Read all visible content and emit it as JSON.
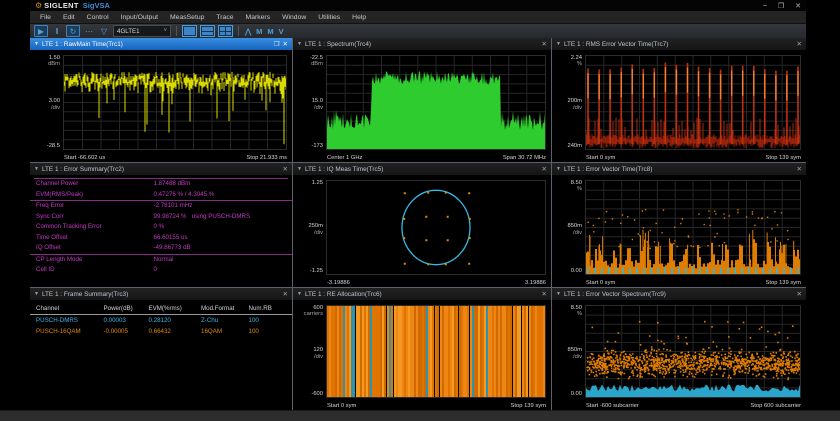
{
  "window": {
    "brand": "SIGLENT",
    "app": "SigVSA",
    "minimize": "–",
    "maximize": "❐",
    "close": "✕"
  },
  "menu": {
    "items": [
      "File",
      "Edit",
      "Control",
      "Input/Output",
      "MeasSetup",
      "Trace",
      "Markers",
      "Window",
      "Utilities",
      "Help"
    ]
  },
  "toolbar": {
    "play": "▶",
    "pause": "‖",
    "restart": "↻",
    "more": "⋯",
    "filter": "▽",
    "measurement": "4GLTE1",
    "chevron": "˅",
    "markers": [
      "⋀",
      "M",
      "M",
      "V"
    ]
  },
  "panel_chrome": {
    "dropdown": "▼",
    "maximize": "❐",
    "close": "✕"
  },
  "colors": {
    "accent_blue": "#1a73cf",
    "trace_yellow": "#e6e600",
    "trace_green": "#2ecc2e",
    "trace_red": "#c03010",
    "trace_orange": "#e07c00",
    "trace_cyan": "#35b8e8",
    "summary_magenta": "#c23ac2"
  },
  "panels": {
    "rawmain": {
      "title": "LTE 1 : RawMain Time(Trc1)",
      "y_top": "1.50",
      "y_top_unit": "dBm",
      "y_div": "3.00",
      "y_div_unit": "/div",
      "y_bottom": "-28.5",
      "x_left": "Start  -66.602 us",
      "x_right": "Stop  21.933 ms",
      "trace": {
        "type": "yellow-noise",
        "color": "#e6e600",
        "seed": 7,
        "grid": true
      }
    },
    "spectrum": {
      "title": "LTE 1 : Spectrum(Trc4)",
      "y_top": "-22.5",
      "y_top_unit": "dBm",
      "y_div": "15.0",
      "y_div_unit": "/div",
      "y_bottom": "-173",
      "x_left": "Center  1 GHz",
      "x_right": "Span  30.72 MHz",
      "trace": {
        "type": "green-spectrum",
        "color": "#2ecc2e",
        "seed": 11,
        "grid": true
      }
    },
    "rms_evt": {
      "title": "LTE 1 : RMS Error Vector Time(Trc7)",
      "y_top": "2.24",
      "y_top_unit": "%",
      "y_div": "200m",
      "y_div_unit": "/div",
      "y_bottom": "240m",
      "x_left": "Start  0 sym",
      "x_right": "Stop  139 sym",
      "trace": {
        "type": "red-spikes",
        "color": "#c03010",
        "tip": "#ff8a30",
        "seed": 13,
        "grid": true
      }
    },
    "err_summary": {
      "title": "LTE 1 : Error Summary(Trc2)",
      "rows": [
        {
          "label": "Channel Power",
          "value": "1.87488 dBm"
        },
        {
          "label": "EVM(RMS/Peak)",
          "value": "0.47276 % / 4.3045 %"
        },
        {
          "label": "Freq Error",
          "value": "-2.78101 mHz"
        },
        {
          "label": "Sync Corr",
          "value": "99.98724 %   using PUSCH-DMRS"
        },
        {
          "label": "Common Tracking Error",
          "value": "0 %"
        },
        {
          "label": "Time Offset",
          "value": "66.60155 us"
        },
        {
          "label": "IQ Offset",
          "value": "-49.86773 dB"
        },
        {
          "label": "CP Length Mode",
          "value": "Normal"
        },
        {
          "label": "Cell ID",
          "value": "0"
        }
      ]
    },
    "iq_meas": {
      "title": "LTE 1 : IQ Meas Time(Trc5)",
      "y_top": "1.25",
      "y_top_unit": "",
      "y_div": "250m",
      "y_div_unit": "/div",
      "y_bottom": "-1.25",
      "x_left": "-3.19886",
      "x_right": "3.19886",
      "trace": {
        "type": "iq-const",
        "circle": "#35b8e8",
        "dots": "#e08a00",
        "seed": 5,
        "grid": false
      }
    },
    "evt": {
      "title": "LTE 1 : Error Vector Time(Trc8)",
      "y_top": "8.50",
      "y_top_unit": "%",
      "y_div": "850m",
      "y_div_unit": "/div",
      "y_bottom": "0.00",
      "x_left": "Start  0 sym",
      "x_right": "Stop  139 sym",
      "trace": {
        "type": "orange-bars",
        "color": "#e07c00",
        "accent": "#30b8d8",
        "seed": 17,
        "grid": true
      }
    },
    "frame_summary": {
      "title": "LTE 1 : Frame Summary(Trc3)",
      "headers": [
        "Channel",
        "Power(dB)",
        "EVM(%rms)",
        "Mod.Format",
        "Num.RB"
      ],
      "rows": [
        {
          "channel": "PUSCH-DMRS",
          "power": "0.00003",
          "evm": "0.28120",
          "mod": "Z-Chu",
          "rb": "100"
        },
        {
          "channel": "PUSCH-16QAM",
          "power": "-0.00005",
          "evm": "0.66432",
          "mod": "16QAM",
          "rb": "100"
        }
      ]
    },
    "re_alloc": {
      "title": "LTE 1 : RE Allocation(Trc6)",
      "y_top": "600",
      "y_top_unit": "carriers",
      "y_div": "120",
      "y_div_unit": "/div",
      "y_bottom": "-600",
      "x_left": "Start  0 sym",
      "x_right": "Stop  139 sym",
      "trace": {
        "type": "re-alloc",
        "orange": "#e07400",
        "cyan": "#2f93ad",
        "seed": 19,
        "grid": false
      }
    },
    "evs": {
      "title": "LTE 1 : Error Vector Spectrum(Trc9)",
      "y_top": "8.50",
      "y_top_unit": "%",
      "y_div": "850m",
      "y_div_unit": "/div",
      "y_bottom": "0.00",
      "x_left": "Start  -600 subcarrier",
      "x_right": "Stop  600 subcarrier",
      "trace": {
        "type": "evs-scatter",
        "orange": "#e07c00",
        "cyan": "#2aa6cc",
        "seed": 23,
        "grid": true
      }
    }
  }
}
